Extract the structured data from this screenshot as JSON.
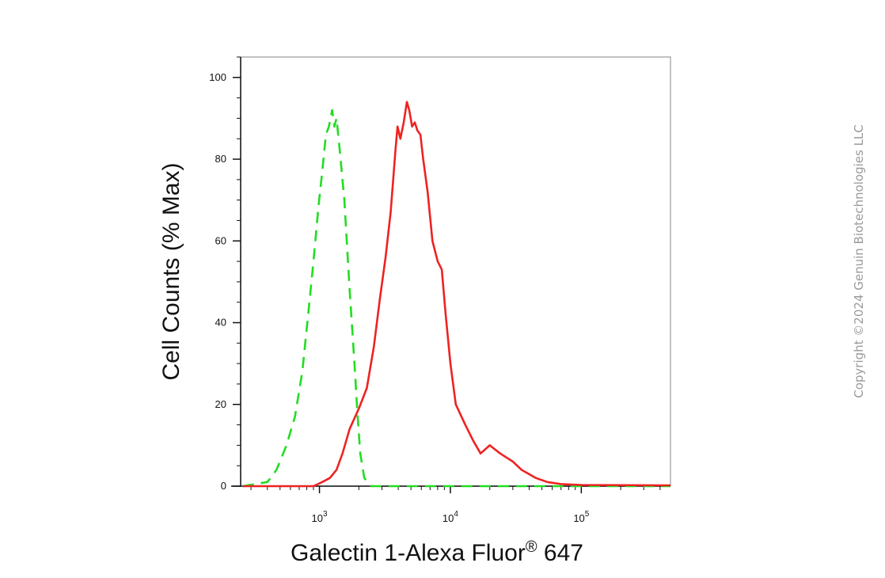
{
  "chart_data": {
    "type": "line",
    "title": "",
    "xlabel": "Galectin 1-Alexa Fluor",
    "xlabel_superscript": "®",
    "xlabel_suffix": " 647",
    "ylabel": "Cell Counts (% Max)",
    "x_scale": "log",
    "xlim": [
      250,
      480000
    ],
    "ylim": [
      0,
      105
    ],
    "y_ticks": [
      0,
      20,
      40,
      60,
      80,
      100
    ],
    "x_ticks": [
      {
        "value": 1000,
        "base": "10",
        "exp": "3"
      },
      {
        "value": 10000,
        "base": "10",
        "exp": "4"
      },
      {
        "value": 100000,
        "base": "10",
        "exp": "5"
      }
    ],
    "grid": false,
    "legend": "none",
    "series": [
      {
        "color": "#22dd22",
        "style": "dashed",
        "points": [
          [
            260,
            0
          ],
          [
            400,
            1
          ],
          [
            470,
            4
          ],
          [
            560,
            10
          ],
          [
            650,
            17
          ],
          [
            740,
            28
          ],
          [
            820,
            42
          ],
          [
            900,
            55
          ],
          [
            980,
            68
          ],
          [
            1050,
            77
          ],
          [
            1120,
            86
          ],
          [
            1180,
            88
          ],
          [
            1250,
            92
          ],
          [
            1300,
            88
          ],
          [
            1350,
            90
          ],
          [
            1430,
            82
          ],
          [
            1550,
            70
          ],
          [
            1700,
            48
          ],
          [
            1850,
            30
          ],
          [
            1950,
            18
          ],
          [
            2050,
            8
          ],
          [
            2200,
            2
          ],
          [
            2500,
            0
          ],
          [
            480000,
            0
          ]
        ]
      },
      {
        "color": "#ee2222",
        "style": "solid",
        "points": [
          [
            260,
            0
          ],
          [
            900,
            0
          ],
          [
            1050,
            1
          ],
          [
            1200,
            2
          ],
          [
            1350,
            4
          ],
          [
            1500,
            8
          ],
          [
            1700,
            14
          ],
          [
            2000,
            19
          ],
          [
            2300,
            24
          ],
          [
            2600,
            34
          ],
          [
            2900,
            46
          ],
          [
            3200,
            56
          ],
          [
            3500,
            67
          ],
          [
            3800,
            82
          ],
          [
            3950,
            88
          ],
          [
            4150,
            85
          ],
          [
            4400,
            89
          ],
          [
            4650,
            94
          ],
          [
            4850,
            92
          ],
          [
            5100,
            88
          ],
          [
            5350,
            89
          ],
          [
            5600,
            87
          ],
          [
            5900,
            86
          ],
          [
            6200,
            80
          ],
          [
            6700,
            72
          ],
          [
            7300,
            60
          ],
          [
            8000,
            55
          ],
          [
            8600,
            53
          ],
          [
            9200,
            42
          ],
          [
            10000,
            30
          ],
          [
            11000,
            20
          ],
          [
            13000,
            15
          ],
          [
            15000,
            11
          ],
          [
            17000,
            8
          ],
          [
            20000,
            10
          ],
          [
            24000,
            8
          ],
          [
            30000,
            6
          ],
          [
            35000,
            4
          ],
          [
            45000,
            2
          ],
          [
            55000,
            1
          ],
          [
            70000,
            0.5
          ],
          [
            100000,
            0.3
          ],
          [
            480000,
            0.2
          ]
        ]
      }
    ]
  },
  "copyright": "Copyright ©2024 Genuin Biotechnologies LLC"
}
